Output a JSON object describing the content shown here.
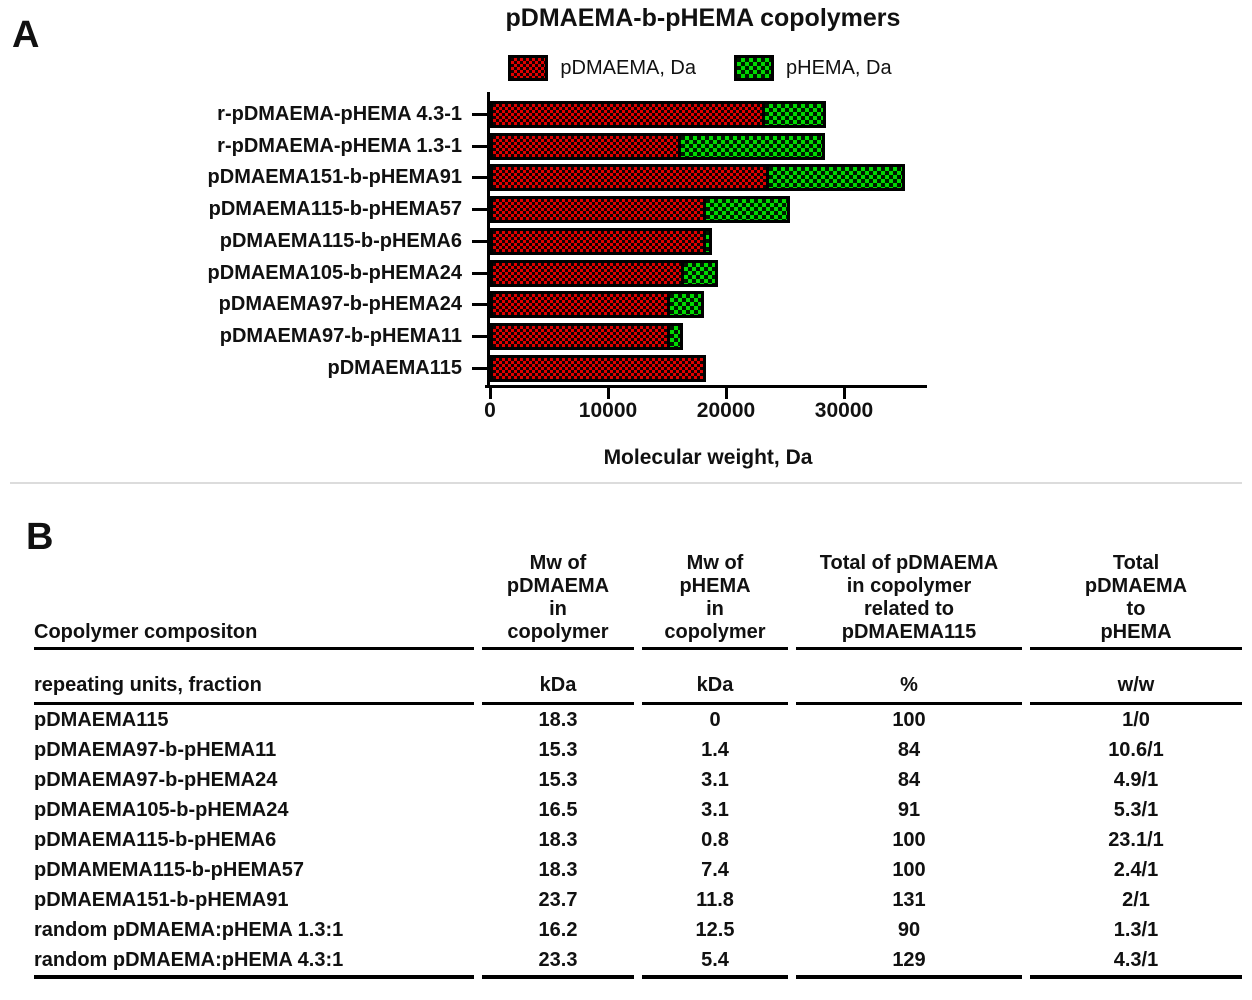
{
  "panelA": {
    "label": "A",
    "title": "pDMAEMA-b-pHEMA copolymers",
    "legend": [
      {
        "label": "pDMAEMA, Da",
        "swatch": "red-black-checker",
        "color": "#e00000"
      },
      {
        "label": "pHEMA, Da",
        "swatch": "green-black-checker",
        "color": "#00d800"
      }
    ],
    "xlabel": "Molecular weight, Da"
  },
  "chart_data": {
    "type": "bar",
    "orientation": "horizontal",
    "stacked": true,
    "title": "pDMAEMA-b-pHEMA copolymers",
    "xlabel": "Molecular weight, Da",
    "xlim": [
      0,
      37000
    ],
    "xticks": [
      0,
      10000,
      20000,
      30000
    ],
    "grid": false,
    "legend_position": "top-center",
    "categories": [
      "r-pDMAEMA-pHEMA 4.3-1",
      "r-pDMAEMA-pHEMA 1.3-1",
      "pDMAEMA151-b-pHEMA91",
      "pDMAEMA115-b-pHEMA57",
      "pDMAEMA115-b-pHEMA6",
      "pDMAEMA105-b-pHEMA24",
      "pDMAEMA97-b-pHEMA24",
      "pDMAEMA97-b-pHEMA11",
      "pDMAEMA115"
    ],
    "series": [
      {
        "name": "pDMAEMA, Da",
        "color": "#e00000",
        "pattern": "checkerboard-on-black",
        "values": [
          23300,
          16200,
          23700,
          18300,
          18300,
          16500,
          15300,
          15300,
          18300
        ]
      },
      {
        "name": "pHEMA, Da",
        "color": "#00d800",
        "pattern": "checkerboard-on-black",
        "values": [
          5400,
          12500,
          11800,
          7400,
          800,
          3100,
          3100,
          1400,
          0
        ]
      }
    ]
  },
  "panelB": {
    "label": "B",
    "table": {
      "headers": [
        "Copolymer compositon",
        "Mw of\npDMAEMA\nin\ncopolymer",
        "Mw of\npHEMA\nin\ncopolymer",
        "Total of pDMAEMA\nin copolymer\nrelated to\npDMAEMA115",
        "Total\npDMAEMA\nto\npHEMA"
      ],
      "units": [
        "repeating units, fraction",
        "kDa",
        "kDa",
        "%",
        "w/w"
      ],
      "rows": [
        [
          "pDMAEMA115",
          "18.3",
          "0",
          "100",
          "1/0"
        ],
        [
          "pDMAEMA97-b-pHEMA11",
          "15.3",
          "1.4",
          "84",
          "10.6/1"
        ],
        [
          "pDMAEMA97-b-pHEMA24",
          "15.3",
          "3.1",
          "84",
          "4.9/1"
        ],
        [
          "pDMAEMA105-b-pHEMA24",
          "16.5",
          "3.1",
          "91",
          "5.3/1"
        ],
        [
          "pDMAEMA115-b-pHEMA6",
          "18.3",
          "0.8",
          "100",
          "23.1/1"
        ],
        [
          "pDMAMEMA115-b-pHEMA57",
          "18.3",
          "7.4",
          "100",
          "2.4/1"
        ],
        [
          "pDMAEMA151-b-pHEMA91",
          "23.7",
          "11.8",
          "131",
          "2/1"
        ],
        [
          "random pDMAEMA:pHEMA 1.3:1",
          "16.2",
          "12.5",
          "90",
          "1.3/1"
        ],
        [
          "random pDMAEMA:pHEMA 4.3:1",
          "23.3",
          "5.4",
          "129",
          "4.3/1"
        ]
      ]
    }
  }
}
